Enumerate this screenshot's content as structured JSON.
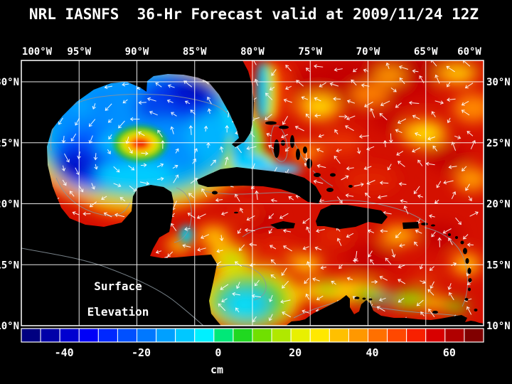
{
  "title": "NRL IASNFS  36-Hr Forecast valid at 2009/11/24 12Z",
  "annotation": {
    "line1": "Surface",
    "line2": "Elevation"
  },
  "axes": {
    "x_ticks": [
      "100°W",
      "95°W",
      "90°W",
      "85°W",
      "80°W",
      "75°W",
      "70°W",
      "65°W",
      "60°W"
    ],
    "y_ticks": [
      "30°N",
      "25°N",
      "20°N",
      "15°N",
      "10°N"
    ]
  },
  "colorbar": {
    "unit": "cm",
    "tick_labels": [
      "-40",
      "-20",
      "0",
      "20",
      "40",
      "60"
    ],
    "colors": [
      "#000080",
      "#0000a8",
      "#0000d0",
      "#0000f8",
      "#0028ff",
      "#0050ff",
      "#0078ff",
      "#00a0ff",
      "#00c8ff",
      "#00f0ff",
      "#00e878",
      "#20d820",
      "#70e000",
      "#b0e800",
      "#e8f000",
      "#ffe800",
      "#ffc000",
      "#ff9800",
      "#ff7000",
      "#ff4800",
      "#f82000",
      "#d80000",
      "#b00000",
      "#800000"
    ]
  },
  "chart_data": {
    "type": "heatmap",
    "title": "NRL IASNFS 36-Hr Forecast valid at 2009/11/24 12Z",
    "model": "NRL IASNFS",
    "forecast_hours": 36,
    "valid_time": "2009/11/24 12Z",
    "variable": "Surface Elevation",
    "unit": "cm",
    "region": "Intra-Americas Sea: Gulf of Mexico, Caribbean Sea, western North Atlantic",
    "x_axis": {
      "label": "Longitude",
      "tick_values_deg_W": [
        100,
        95,
        90,
        85,
        80,
        75,
        70,
        65,
        60
      ]
    },
    "y_axis": {
      "label": "Latitude",
      "tick_values_deg_N": [
        30,
        25,
        20,
        15,
        10
      ]
    },
    "colorbar": {
      "min_cm": -50,
      "max_cm": 70,
      "interval_cm": 5,
      "tick_values_cm": [
        -40,
        -20,
        0,
        20,
        40,
        60
      ],
      "unit": "cm"
    },
    "overlays": [
      "white surface-current vector arrows",
      "gray coastline and bathymetry contours",
      "white 5-degree latitude-longitude grid",
      "land masked in black"
    ],
    "field_summary": [
      {
        "area": "Gulf of Mexico interior",
        "surface_elevation_cm": "-45 to -10 (blue/cyan low)"
      },
      {
        "area": "Warm-core eddy near 90.5W 25N",
        "surface_elevation_cm": "+15 to +30 red/yellow core ringed by green"
      },
      {
        "area": "Loop Current and Straits of Florida",
        "surface_elevation_cm": "-10 to +5 cyan band between Florida and Cuba"
      },
      {
        "area": "Western North Atlantic and central Caribbean",
        "surface_elevation_cm": "+25 to +55 (orange/red with dark-red eddy cores)"
      },
      {
        "area": "Southwest Caribbean Panama-Colombia gyre",
        "surface_elevation_cm": "-10 to +10 (cyan/green low)"
      },
      {
        "area": "Southern Caribbean coastal band",
        "surface_elevation_cm": "0 to +20 (green/yellow)"
      },
      {
        "area": "Bay of Campeche",
        "surface_elevation_cm": "+20 to +35 (red)"
      }
    ]
  }
}
